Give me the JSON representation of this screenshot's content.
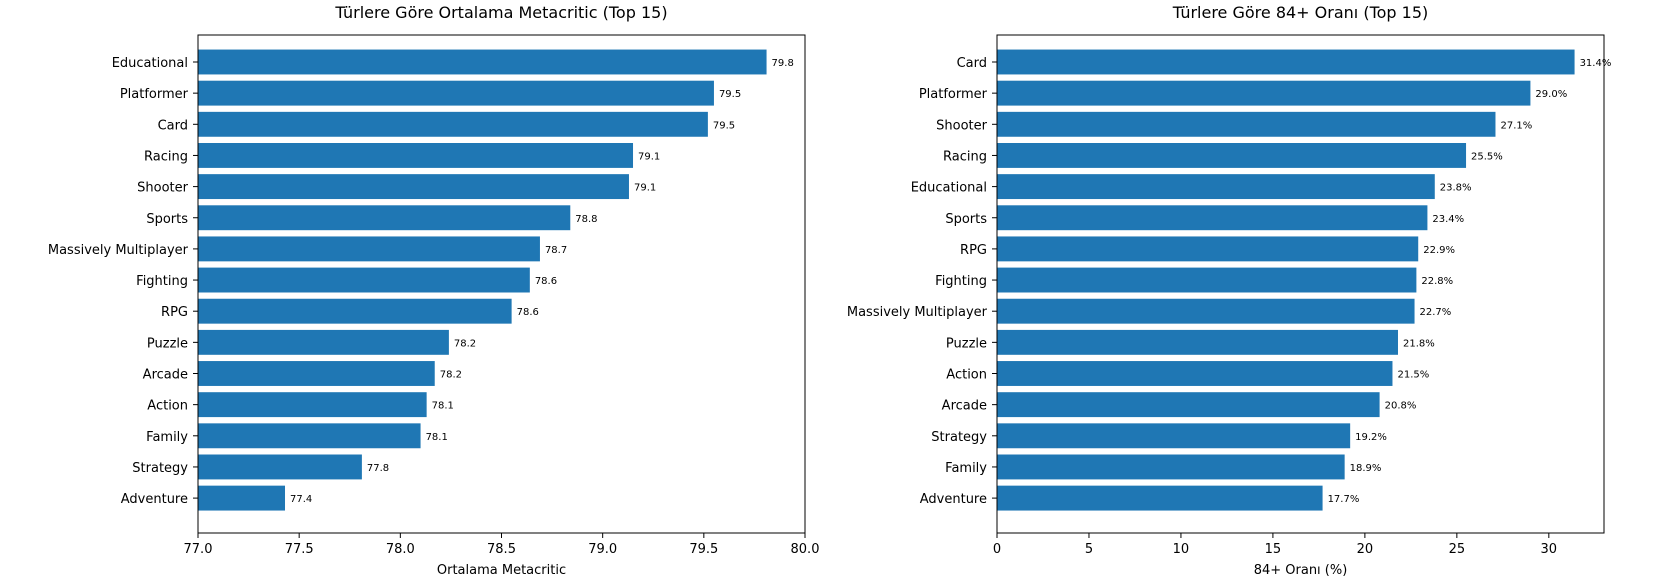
{
  "chart_data": [
    {
      "type": "bar",
      "orientation": "horizontal",
      "title": "Türlere Göre Ortalama Metacritic (Top 15)",
      "xlabel": "Ortalama Metacritic",
      "ylabel": "",
      "xlim": [
        77.0,
        80.0
      ],
      "xticks": [
        "77.0",
        "77.5",
        "78.0",
        "78.5",
        "79.0",
        "79.5",
        "80.0"
      ],
      "categories": [
        "Educational",
        "Platformer",
        "Card",
        "Racing",
        "Shooter",
        "Sports",
        "Massively Multiplayer",
        "Fighting",
        "RPG",
        "Puzzle",
        "Arcade",
        "Action",
        "Family",
        "Strategy",
        "Adventure"
      ],
      "values": [
        79.81,
        79.55,
        79.52,
        79.15,
        79.13,
        78.84,
        78.69,
        78.64,
        78.55,
        78.24,
        78.17,
        78.13,
        78.1,
        77.81,
        77.43
      ],
      "data_labels": [
        "79.8",
        "79.5",
        "79.5",
        "79.1",
        "79.1",
        "78.8",
        "78.7",
        "78.6",
        "78.6",
        "78.2",
        "78.2",
        "78.1",
        "78.1",
        "77.8",
        "77.4"
      ],
      "color": "#1f77b4",
      "grid": false
    },
    {
      "type": "bar",
      "orientation": "horizontal",
      "title": "Türlere Göre 84+ Oranı (Top 15)",
      "xlabel": "84+ Oranı (%)",
      "ylabel": "",
      "xlim": [
        0,
        33
      ],
      "xticks": [
        "0",
        "5",
        "10",
        "15",
        "20",
        "25",
        "30"
      ],
      "categories": [
        "Card",
        "Platformer",
        "Shooter",
        "Racing",
        "Educational",
        "Sports",
        "RPG",
        "Fighting",
        "Massively Multiplayer",
        "Puzzle",
        "Action",
        "Arcade",
        "Strategy",
        "Family",
        "Adventure"
      ],
      "values": [
        31.4,
        29.0,
        27.1,
        25.5,
        23.8,
        23.4,
        22.9,
        22.8,
        22.7,
        21.8,
        21.5,
        20.8,
        19.2,
        18.9,
        17.7
      ],
      "data_labels": [
        "31.4%",
        "29.0%",
        "27.1%",
        "25.5%",
        "23.8%",
        "23.4%",
        "22.9%",
        "22.8%",
        "22.7%",
        "21.8%",
        "21.5%",
        "20.8%",
        "19.2%",
        "18.9%",
        "17.7%"
      ],
      "color": "#1f77b4",
      "grid": false
    }
  ]
}
